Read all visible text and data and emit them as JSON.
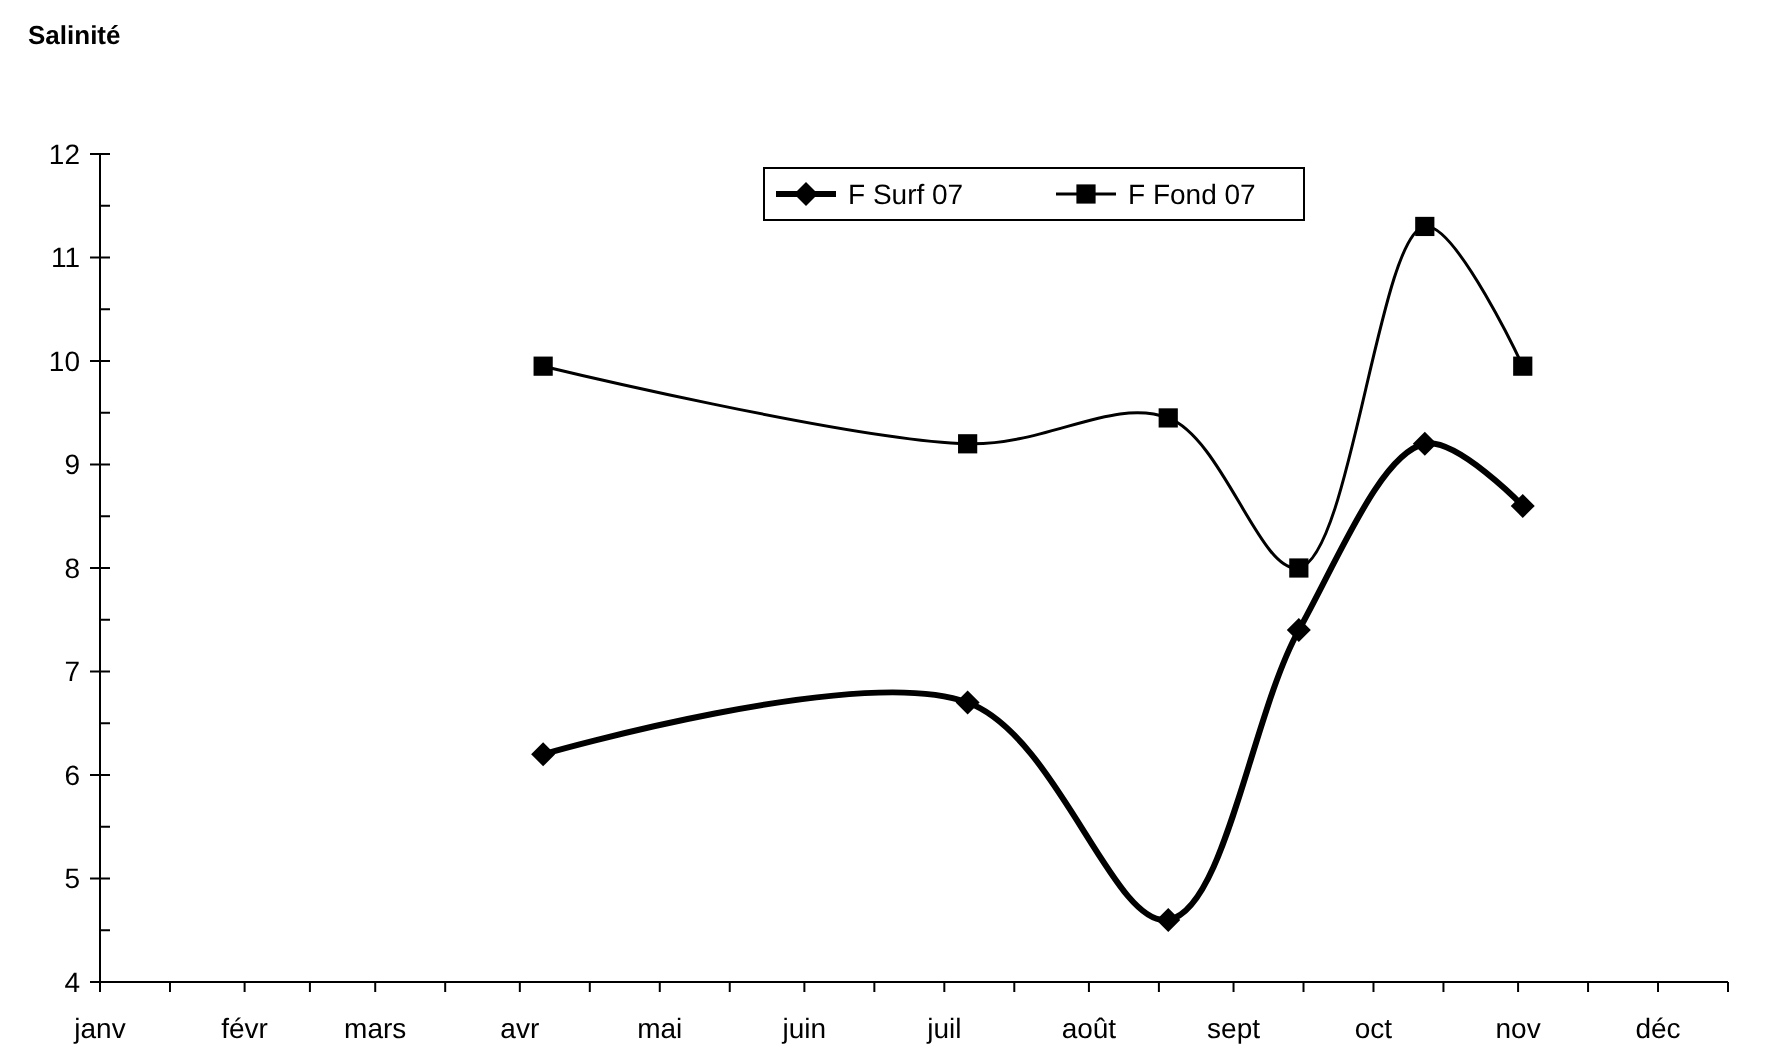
{
  "chart_data": {
    "type": "line",
    "title": "Salinité",
    "xlim": [
      "--01-01",
      "--12-16"
    ],
    "xticks": [
      {
        "value": "--01-01",
        "label": "janv"
      },
      {
        "value": "--01-16",
        "label": null
      },
      {
        "value": "--02-01",
        "label": "févr"
      },
      {
        "value": "--02-15",
        "label": null
      },
      {
        "value": "--03-01",
        "label": "mars"
      },
      {
        "value": "--03-16",
        "label": null
      },
      {
        "value": "--04-01",
        "label": "avr"
      },
      {
        "value": "--04-16",
        "label": null
      },
      {
        "value": "--05-01",
        "label": "mai"
      },
      {
        "value": "--05-16",
        "label": null
      },
      {
        "value": "--06-01",
        "label": "juin"
      },
      {
        "value": "--06-16",
        "label": null
      },
      {
        "value": "--07-01",
        "label": "juil"
      },
      {
        "value": "--07-16",
        "label": null
      },
      {
        "value": "--08-01",
        "label": "août"
      },
      {
        "value": "--08-16",
        "label": null
      },
      {
        "value": "--09-01",
        "label": "sept"
      },
      {
        "value": "--09-16",
        "label": null
      },
      {
        "value": "--10-01",
        "label": "oct"
      },
      {
        "value": "--10-16",
        "label": null
      },
      {
        "value": "--11-01",
        "label": "nov"
      },
      {
        "value": "--11-16",
        "label": null
      },
      {
        "value": "--12-01",
        "label": "déc"
      },
      {
        "value": "--12-16",
        "label": null
      }
    ],
    "ylim": [
      4,
      12
    ],
    "yticks": [
      4,
      {
        "value": 4.5,
        "label": null
      },
      5,
      {
        "value": 5.5,
        "label": null
      },
      6,
      {
        "value": 6.5,
        "label": null
      },
      7,
      {
        "value": 7.5,
        "label": null
      },
      8,
      {
        "value": 8.5,
        "label": null
      },
      9,
      {
        "value": 9.5,
        "label": null
      },
      10,
      {
        "value": 10.5,
        "label": null
      },
      11,
      {
        "value": 11.5,
        "label": null
      },
      12
    ],
    "grid": false,
    "legend": "top",
    "line_style": "solid",
    "x": [
      "--04-06",
      "--07-06",
      "--08-18",
      "--09-15",
      "--10-12",
      "--11-02"
    ],
    "series": [
      {
        "name": "F Surf 07",
        "color": "#000000",
        "marker": "diamond",
        "values": [
          6.2,
          6.7,
          4.6,
          7.4,
          9.2,
          8.6
        ]
      },
      {
        "name": "F Fond 07",
        "color": "#000000",
        "marker": "square",
        "values": [
          9.95,
          9.2,
          9.45,
          8.0,
          11.3,
          9.95
        ]
      }
    ]
  }
}
